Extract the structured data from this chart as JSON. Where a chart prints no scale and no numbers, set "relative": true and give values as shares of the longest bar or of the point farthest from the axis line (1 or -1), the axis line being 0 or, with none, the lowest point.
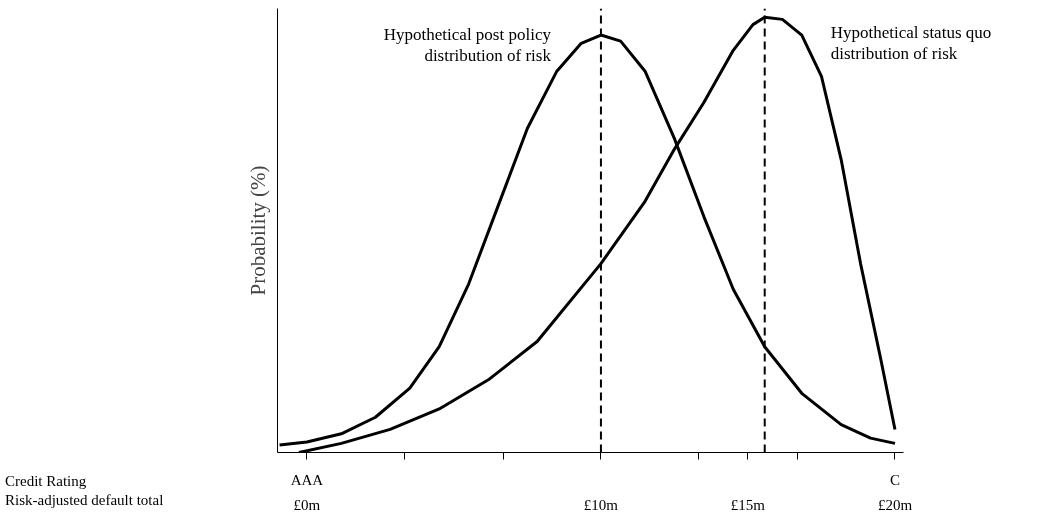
{
  "chart_data": {
    "type": "line",
    "relative": true,
    "ylabel": "Probability (%)",
    "xlim": [
      -1,
      20.3
    ],
    "xticks": [
      {
        "value": 0,
        "label": "£0m"
      },
      {
        "value": 3.33,
        "label": null
      },
      {
        "value": 6.67,
        "label": null
      },
      {
        "value": 10,
        "label": "£10m"
      },
      {
        "value": 13.33,
        "label": null
      },
      {
        "value": 15,
        "label": "£15m"
      },
      {
        "value": 16.67,
        "label": null
      },
      {
        "value": 20,
        "label": "£20m"
      }
    ],
    "tick_labels": "x",
    "grid": false,
    "legend": false,
    "marker": "none",
    "line_style": "solid",
    "series": [
      {
        "name": "Hypothetical post policy distribution of risk",
        "color": "#000000",
        "x": [
          -0.93,
          0,
          1.17,
          2.33,
          3.5,
          4.5,
          5.5,
          6.5,
          7.5,
          8.5,
          9.33,
          10,
          10.67,
          11.5,
          12.5,
          13.5,
          14.5,
          15.57,
          16.83,
          18.17,
          19.17,
          20
        ],
        "values": [
          0.017,
          0.024,
          0.043,
          0.081,
          0.148,
          0.243,
          0.387,
          0.566,
          0.745,
          0.876,
          0.94,
          0.959,
          0.945,
          0.876,
          0.721,
          0.542,
          0.375,
          0.243,
          0.136,
          0.064,
          0.033,
          0.021
        ]
      },
      {
        "name": "Hypothetical status quo distribution of risk",
        "color": "#000000",
        "x": [
          -0.27,
          1.17,
          2.83,
          4.5,
          6.17,
          7.83,
          10,
          11.5,
          12.5,
          13.5,
          14.5,
          15.17,
          15.57,
          16.17,
          16.83,
          17.5,
          18.17,
          18.83,
          19.5,
          20
        ],
        "values": [
          0,
          0.021,
          0.053,
          0.1,
          0.167,
          0.255,
          0.434,
          0.577,
          0.697,
          0.804,
          0.924,
          0.983,
          1.0,
          0.995,
          0.959,
          0.864,
          0.673,
          0.434,
          0.22,
          0.053
        ]
      }
    ],
    "ref_lines": [
      {
        "axis": "x",
        "value": 10,
        "label": null,
        "color": "#000000",
        "line_style": "dashed"
      },
      {
        "axis": "x",
        "value": 15.57,
        "label": null,
        "color": "#000000",
        "line_style": "dashed"
      }
    ],
    "annotations": [
      "Credit Rating",
      "Risk-adjusted default total",
      {
        "text": "AAA",
        "x": 0
      },
      {
        "text": "C",
        "x": 20
      }
    ]
  }
}
